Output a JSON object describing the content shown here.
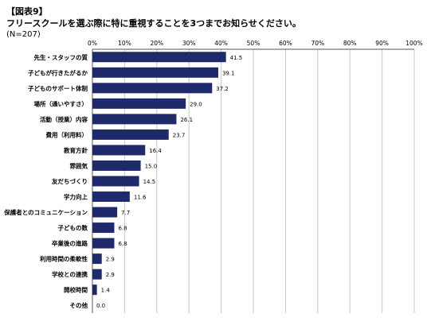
{
  "figure_label": "【図表9】",
  "title": "フリースクールを選ぶ際に特に重視することを3つまでお知らせください。",
  "sample_note": "(N=207)",
  "colors": {
    "bar": "#1f2a6b",
    "grid": "#c8c8c8",
    "axis": "#555555"
  },
  "chart_data": {
    "type": "bar",
    "orientation": "horizontal",
    "title": "フリースクールを選ぶ際に特に重視することを3つまでお知らせください。",
    "xlim": [
      0,
      100
    ],
    "x_ticks": [
      "0%",
      "10%",
      "20%",
      "30%",
      "40%",
      "50%",
      "60%",
      "70%",
      "80%",
      "90%",
      "100%"
    ],
    "tick_step": 10,
    "grid": true,
    "categories": [
      "先生・スタッフの質",
      "子どもが行きたがるか",
      "子どものサポート体制",
      "場所（通いやすさ）",
      "活動（授業）内容",
      "費用（利用料）",
      "教育方針",
      "雰囲気",
      "友だちづくり",
      "学力向上",
      "保護者とのコミュニケーション",
      "子どもの数",
      "卒業後の進路",
      "利用時間の柔軟性",
      "学校との連携",
      "開校時間",
      "その他"
    ],
    "values": [
      41.5,
      39.1,
      37.2,
      29.0,
      26.1,
      23.7,
      16.4,
      15.0,
      14.5,
      11.6,
      7.7,
      6.8,
      6.8,
      2.9,
      2.9,
      1.4,
      0.0
    ],
    "data_labels": [
      "41.5",
      "39.1",
      "37.2",
      "29.0",
      "26.1",
      "23.7",
      "16.4",
      "15.0",
      "14.5",
      "11.6",
      "7.7",
      "6.8",
      "6.8",
      "2.9",
      "2.9",
      "1.4",
      "0.0"
    ]
  }
}
